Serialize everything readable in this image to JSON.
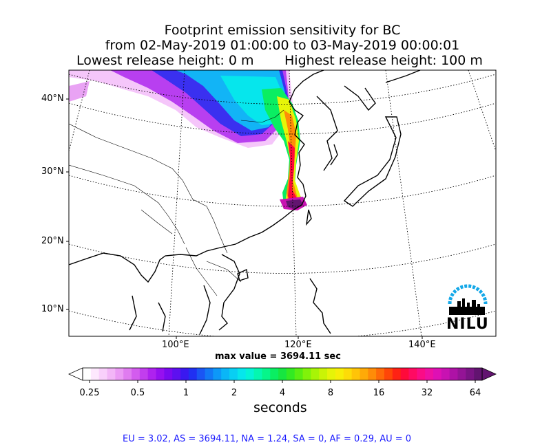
{
  "title": {
    "line1": "Footprint emission sensitivity for BC",
    "line2": "from 02-May-2019 01:00:00 to 03-May-2019 00:00:01",
    "lowest": "Lowest release height: 0 m",
    "highest": "Highest release height: 100 m"
  },
  "map": {
    "lat_labels": [
      "40°N",
      "30°N",
      "20°N",
      "10°N"
    ],
    "lon_labels": [
      "100°E",
      "120°E",
      "140°E"
    ],
    "projection": "conic",
    "region": "East Asia",
    "max_value_text": "max value = 3694.11 sec"
  },
  "colorbar": {
    "tick_labels": [
      "0.25",
      "0.5",
      "1",
      "2",
      "4",
      "8",
      "16",
      "32",
      "64"
    ],
    "units": "seconds",
    "colors": [
      "#ffffff",
      "#fde8fd",
      "#f9d0fb",
      "#f3b6f7",
      "#eb9af4",
      "#e07cf0",
      "#d35cee",
      "#c23eee",
      "#ae22ef",
      "#9610f0",
      "#7a0af0",
      "#5d10f0",
      "#3a18f0",
      "#2030f2",
      "#1a55f4",
      "#1278f6",
      "#0d98f8",
      "#0ab6f7",
      "#08cff3",
      "#06e6ec",
      "#04f3d6",
      "#04f7b0",
      "#06f58a",
      "#0aee62",
      "#16e640",
      "#32ea22",
      "#58ee12",
      "#80f20a",
      "#a8f406",
      "#caf406",
      "#e6f408",
      "#f7ee08",
      "#fddc08",
      "#ffc408",
      "#ffaa08",
      "#ff8c08",
      "#ff6a08",
      "#ff4608",
      "#ff2214",
      "#ff0a3a",
      "#ff0a62",
      "#fa0c86",
      "#ee10a2",
      "#de10b4",
      "#c812b2",
      "#ae12a6",
      "#941496",
      "#7a1484",
      "#621470"
    ]
  },
  "summary": "EU = 3.02,  AS = 3694.11,  NA = 1.24,  SA = 0,  AF = 0.29,  AU = 0",
  "logo": {
    "text": "NILU",
    "arc_color": "#14a8e8"
  }
}
